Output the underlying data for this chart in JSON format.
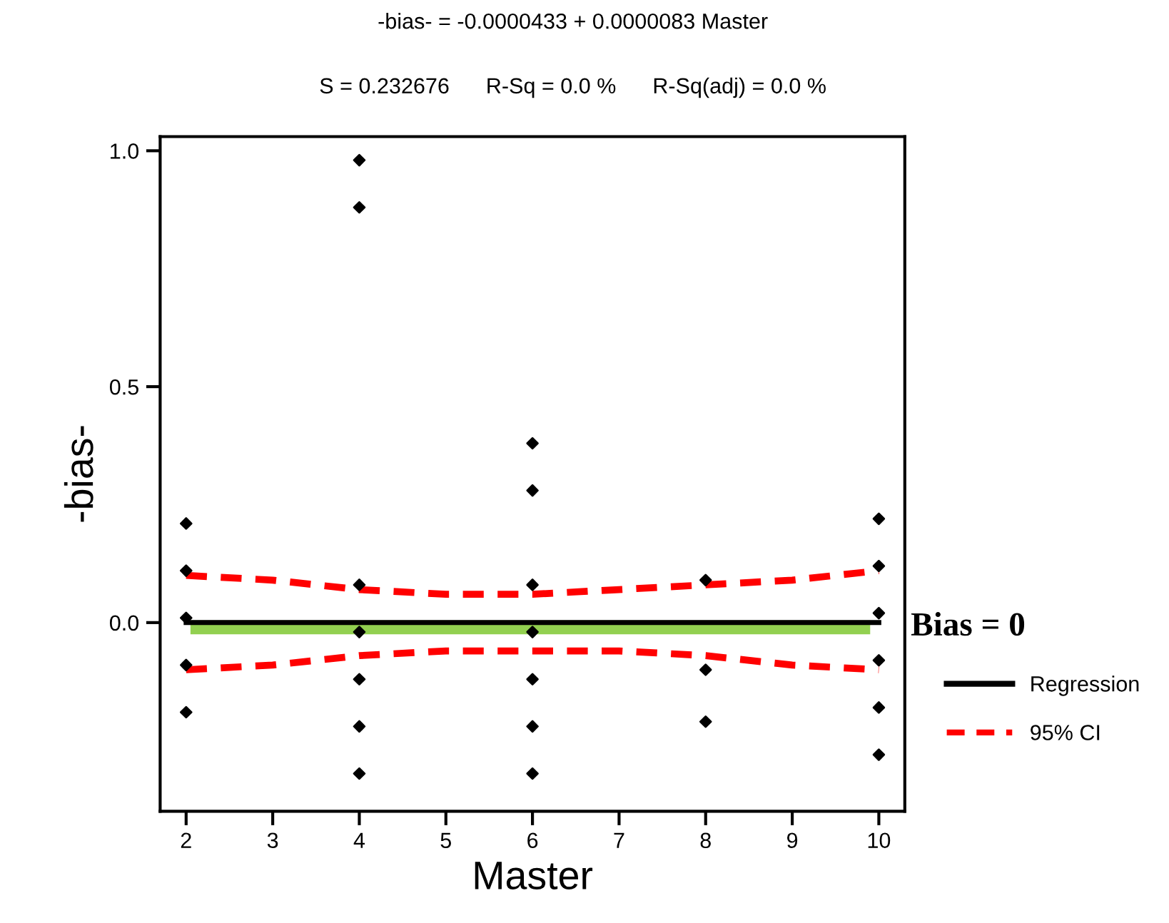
{
  "chart_data": {
    "type": "scatter",
    "title": "-bias- = -0.0000433 + 0.0000083 Master",
    "subtitle": "S = 0.232676      R-Sq = 0.0 %      R-Sq(adj) = 0.0 %",
    "xlabel": "Master",
    "ylabel": "-bias-",
    "x": [
      2,
      2,
      2,
      2,
      2,
      4,
      4,
      4,
      4,
      4,
      4,
      4,
      6,
      6,
      6,
      6,
      6,
      6,
      6,
      8,
      8,
      8,
      10,
      10,
      10,
      10,
      10,
      10
    ],
    "series": [
      {
        "color": "#000000",
        "marker": "diamond",
        "values": [
          0.21,
          0.11,
          0.01,
          -0.09,
          -0.19,
          0.98,
          0.88,
          0.08,
          -0.02,
          -0.12,
          -0.22,
          -0.32,
          0.38,
          0.28,
          0.08,
          -0.02,
          -0.12,
          -0.22,
          -0.32,
          0.09,
          -0.1,
          -0.21,
          0.22,
          0.12,
          0.02,
          -0.08,
          -0.18,
          -0.28
        ]
      },
      {
        "type": "line",
        "name": "Regression",
        "color": "#000000",
        "line_style": "solid",
        "x": [
          2,
          10
        ],
        "values": [
          0.0,
          0.0
        ]
      },
      {
        "type": "line",
        "name": "95% CI",
        "color": "#ff0000",
        "line_style": "dashed",
        "x": [
          2,
          3,
          4,
          5,
          6,
          7,
          8,
          9,
          10
        ],
        "values": [
          0.1,
          0.09,
          0.07,
          0.06,
          0.06,
          0.07,
          0.08,
          0.09,
          0.11
        ]
      },
      {
        "type": "line",
        "color": "#ff0000",
        "line_style": "dashed",
        "x": [
          2,
          3,
          4,
          5,
          6,
          7,
          8,
          9,
          10
        ],
        "values": [
          -0.1,
          -0.09,
          -0.07,
          -0.06,
          -0.06,
          -0.06,
          -0.07,
          -0.09,
          -0.1
        ]
      }
    ],
    "ref_lines": [
      {
        "axis": "y",
        "value": -0.01,
        "label": "Bias = 0",
        "color": "#92d050"
      }
    ],
    "xlim": [
      1.7,
      10.3
    ],
    "ylim": [
      -0.4,
      1.03
    ],
    "xticks": [
      2,
      3,
      4,
      5,
      6,
      7,
      8,
      9,
      10
    ],
    "yticks": [
      {
        "value": 0,
        "label": "0.0"
      },
      {
        "value": 0.5,
        "label": "0.5"
      },
      {
        "value": 1,
        "label": "1.0"
      }
    ],
    "grid": false,
    "legend": "right"
  }
}
